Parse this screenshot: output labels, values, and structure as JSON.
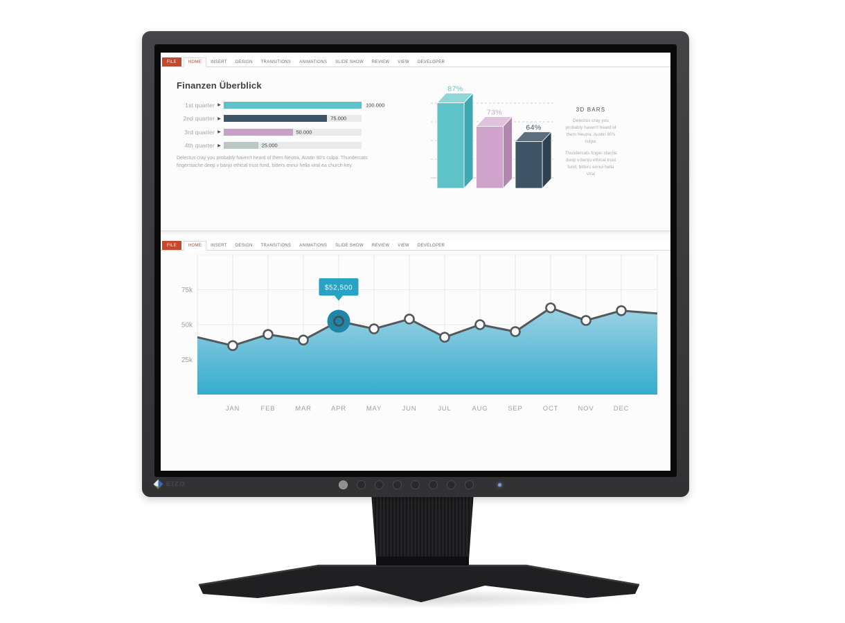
{
  "monitor": {
    "brand_label": "EIZO",
    "buttons": 7,
    "led_color": "#7d9bd4"
  },
  "ribbon": {
    "tabs": [
      "FILE",
      "HOME",
      "INSERT",
      "DESIGN",
      "TRANSITIONS",
      "ANIMATIONS",
      "SLIDE SHOW",
      "REVIEW",
      "VIEW",
      "DEVELOPER"
    ],
    "file_tab": "FILE",
    "active_tab": "HOME",
    "accent_color": "#c3492f"
  },
  "slide1": {
    "title": "Finanzen Überblick",
    "body_text": "Delectus cray you probably haven't heard of them Neutra, Austin 90's culpa. Thundercats fingerstache deep v banjo ethical trust fund, bitters ennui hella viral ea church-key.",
    "panel": {
      "heading": "3D BARS",
      "para1": "Delectus cray you probably haven't heard of them Neutra, Austin 90's culpa.",
      "para2": "Thundercats finger-stache deep v banjo ethical trust fund, bitters ennui hella viral"
    }
  },
  "chart_data": [
    {
      "type": "bar",
      "orientation": "horizontal",
      "title": "Finanzen Überblick",
      "categories": [
        "1st quarter",
        "2nd quarter",
        "3rd quarter",
        "4th quarter"
      ],
      "values": [
        100000,
        75000,
        50000,
        25000
      ],
      "value_labels": [
        "100.000",
        "75.000",
        "50.000",
        "25.000"
      ],
      "xlim": [
        0,
        100000
      ],
      "colors": [
        "#5ec3c9",
        "#3f5567",
        "#c9a0c6",
        "#b9c8c4"
      ],
      "track_color": "#e9ebea"
    },
    {
      "type": "bar",
      "style": "3d",
      "labels": [
        "87%",
        "73%",
        "64%"
      ],
      "values": [
        87,
        73,
        64
      ],
      "unit": "%",
      "grid": "dashed",
      "colors": [
        {
          "front": "#5ec3c9",
          "top": "#8fd6da",
          "side": "#3da8b0"
        },
        {
          "front": "#cfa3cb",
          "top": "#e0c2dd",
          "side": "#b287ae"
        },
        {
          "front": "#3e5366",
          "top": "#5b6f80",
          "side": "#2e4153"
        }
      ]
    },
    {
      "type": "area",
      "x": [
        "JAN",
        "FEB",
        "MAR",
        "APR",
        "MAY",
        "JUN",
        "JUL",
        "AUG",
        "SEP",
        "OCT",
        "NOV",
        "DEC"
      ],
      "values_thousands": [
        35,
        43,
        39,
        52.5,
        47,
        54,
        41,
        50,
        45,
        62,
        53,
        60
      ],
      "edge_start_k": 41,
      "edge_end_k": 58,
      "ylim_k": [
        0,
        100
      ],
      "gridlines_k": [
        75,
        50,
        25
      ],
      "ylabels": [
        "75k",
        "50k",
        "25k"
      ],
      "highlight": {
        "index": 3,
        "month": "APR",
        "tooltip": "$52,500"
      },
      "line_color": "#54585b",
      "area_top_color": "#97d0e2",
      "area_bottom_color": "#2aa8cc",
      "tooltip_color": "#28a3c6",
      "highlight_color": "#1f86a9",
      "grid": true,
      "legend": false
    }
  ]
}
